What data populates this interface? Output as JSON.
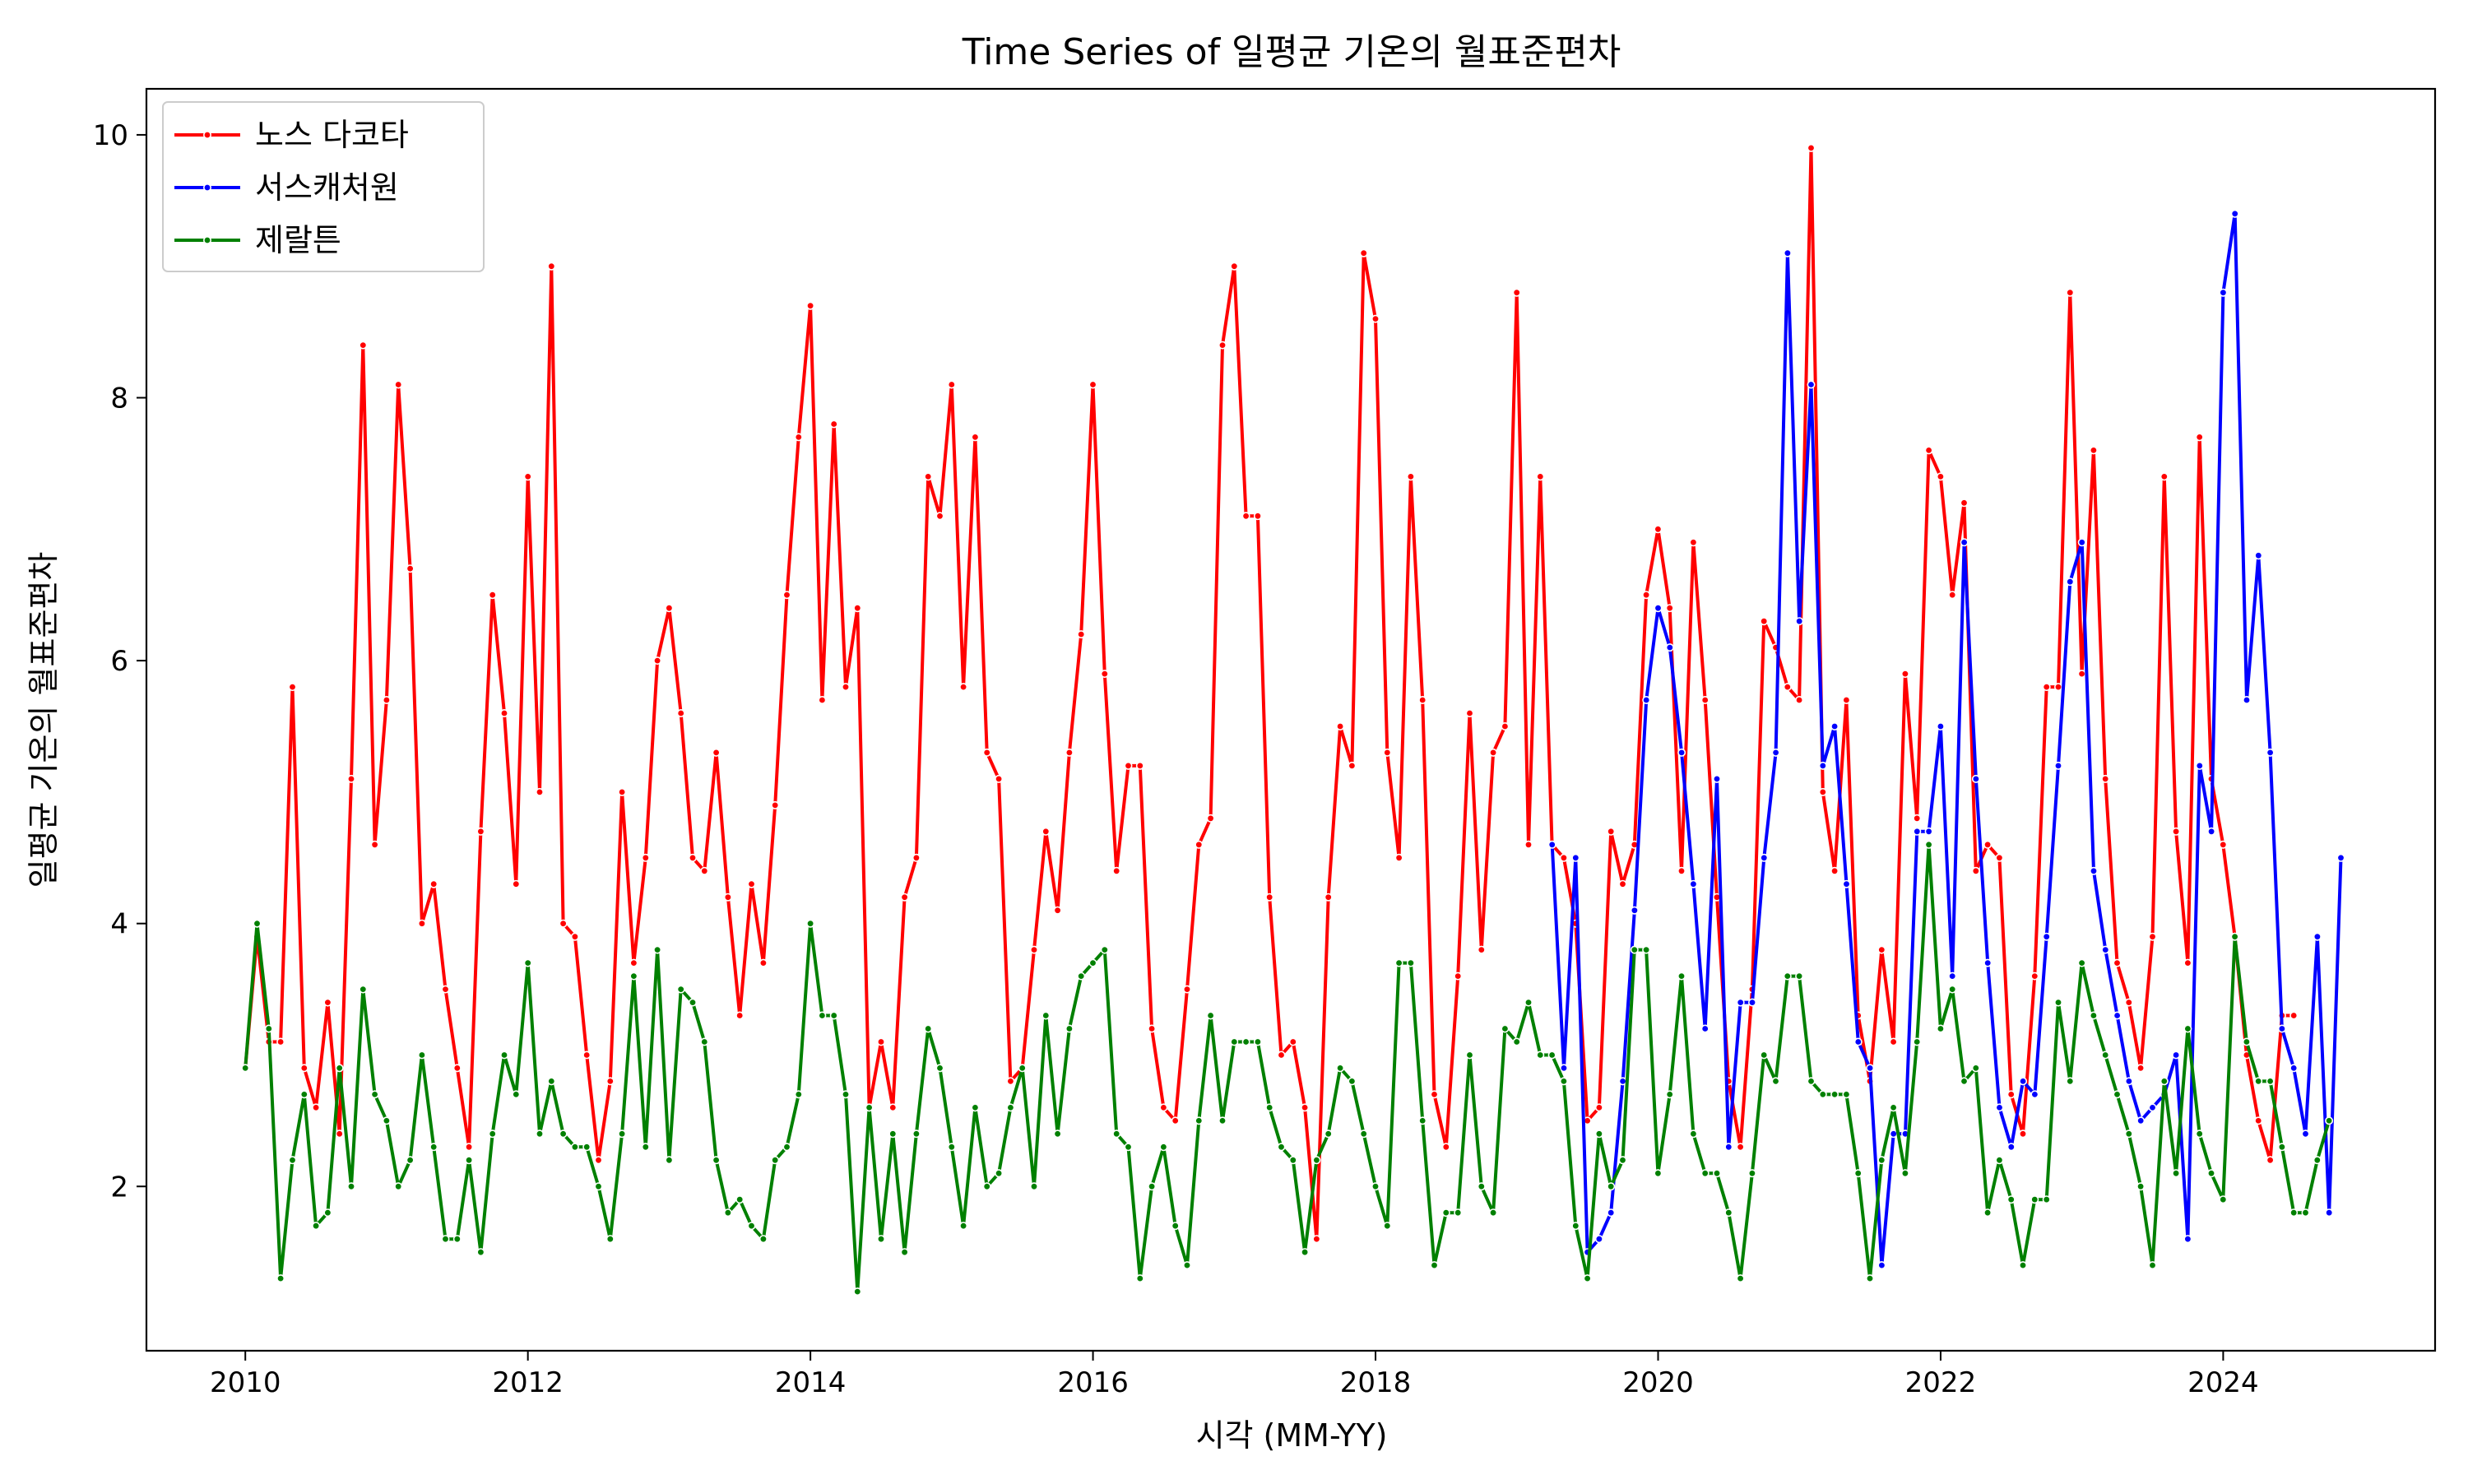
{
  "chart_data": {
    "type": "line",
    "title": "Time Series of 일평균 기온의 월표준편차",
    "xlabel": "시각 (MM-YY)",
    "ylabel": "일평균 기온의 월표준편차",
    "xlim": [
      2009.3,
      2025.5
    ],
    "ylim": [
      0.75,
      10.35
    ],
    "x_ticks": [
      2010,
      2012,
      2014,
      2016,
      2018,
      2020,
      2022,
      2024
    ],
    "y_ticks": [
      2,
      4,
      6,
      8,
      10
    ],
    "grid": false,
    "legend_position": "top-left",
    "series": [
      {
        "name": "노스 다코타",
        "color": "#ff0000",
        "x_start": 2010.0,
        "x_step": 0.08333,
        "values": [
          2.9,
          3.9,
          3.1,
          3.1,
          5.8,
          2.9,
          2.6,
          3.4,
          2.4,
          5.1,
          8.4,
          4.6,
          5.7,
          8.1,
          6.7,
          4.0,
          4.3,
          3.5,
          2.9,
          2.3,
          4.7,
          6.5,
          5.6,
          4.3,
          7.4,
          5.0,
          9.0,
          4.0,
          3.9,
          3.0,
          2.2,
          2.8,
          5.0,
          3.7,
          4.5,
          6.0,
          6.4,
          5.6,
          4.5,
          4.4,
          5.3,
          4.2,
          3.3,
          4.3,
          3.7,
          4.9,
          6.5,
          7.7,
          8.7,
          5.7,
          7.8,
          5.8,
          6.4,
          2.6,
          3.1,
          2.6,
          4.2,
          4.5,
          7.4,
          7.1,
          8.1,
          5.8,
          7.7,
          5.3,
          5.1,
          2.8,
          2.9,
          3.8,
          4.7,
          4.1,
          5.3,
          6.2,
          8.1,
          5.9,
          4.4,
          5.2,
          5.2,
          3.2,
          2.6,
          2.5,
          3.5,
          4.6,
          4.8,
          8.4,
          9.0,
          7.1,
          7.1,
          4.2,
          3.0,
          3.1,
          2.6,
          1.6,
          4.2,
          5.5,
          5.2,
          9.1,
          8.6,
          5.3,
          4.5,
          7.4,
          5.7,
          2.7,
          2.3,
          3.6,
          5.6,
          3.8,
          5.3,
          5.5,
          8.8,
          4.6,
          7.4,
          4.6,
          4.5,
          4.0,
          2.5,
          2.6,
          4.7,
          4.3,
          4.6,
          6.5,
          7.0,
          6.4,
          4.4,
          6.9,
          5.7,
          4.2,
          2.8,
          2.3,
          3.5,
          6.3,
          6.1,
          5.8,
          5.7,
          9.9,
          5.0,
          4.4,
          5.7,
          3.3,
          2.8,
          3.8,
          3.1,
          5.9,
          4.8,
          7.6,
          7.4,
          6.5,
          7.2,
          4.4,
          4.6,
          4.5,
          2.7,
          2.4,
          3.6,
          5.8,
          5.8,
          8.8,
          5.9,
          7.6,
          5.1,
          3.7,
          3.4,
          2.9,
          3.9,
          7.4,
          4.7,
          3.7,
          7.7,
          5.1,
          4.6,
          3.9,
          3.0,
          2.5,
          2.2,
          3.3,
          3.3
        ]
      },
      {
        "name": "서스캐처원",
        "color": "#0000ff",
        "x_start": 2019.25,
        "x_step": 0.08333,
        "values": [
          4.6,
          2.9,
          4.5,
          1.5,
          1.6,
          1.8,
          2.8,
          4.1,
          5.7,
          6.4,
          6.1,
          5.3,
          4.3,
          3.2,
          5.1,
          2.3,
          3.4,
          3.4,
          4.5,
          5.3,
          9.1,
          6.3,
          8.1,
          5.2,
          5.5,
          4.3,
          3.1,
          2.9,
          1.4,
          2.4,
          2.4,
          4.7,
          4.7,
          5.5,
          3.6,
          6.9,
          5.1,
          3.7,
          2.6,
          2.3,
          2.8,
          2.7,
          3.9,
          5.2,
          6.6,
          6.9,
          4.4,
          3.8,
          3.3,
          2.8,
          2.5,
          2.6,
          2.7,
          3.0,
          1.6,
          5.2,
          4.7,
          8.8,
          9.4,
          5.7,
          6.8,
          5.3,
          3.2,
          2.9,
          2.4,
          3.9,
          1.8,
          4.5
        ]
      },
      {
        "name": "제랄튼",
        "color": "#008000",
        "x_start": 2010.0,
        "x_step": 0.08333,
        "values": [
          2.9,
          4.0,
          3.2,
          1.3,
          2.2,
          2.7,
          1.7,
          1.8,
          2.9,
          2.0,
          3.5,
          2.7,
          2.5,
          2.0,
          2.2,
          3.0,
          2.3,
          1.6,
          1.6,
          2.2,
          1.5,
          2.4,
          3.0,
          2.7,
          3.7,
          2.4,
          2.8,
          2.4,
          2.3,
          2.3,
          2.0,
          1.6,
          2.4,
          3.6,
          2.3,
          3.8,
          2.2,
          3.5,
          3.4,
          3.1,
          2.2,
          1.8,
          1.9,
          1.7,
          1.6,
          2.2,
          2.3,
          2.7,
          4.0,
          3.3,
          3.3,
          2.7,
          1.2,
          2.6,
          1.6,
          2.4,
          1.5,
          2.4,
          3.2,
          2.9,
          2.3,
          1.7,
          2.6,
          2.0,
          2.1,
          2.6,
          2.9,
          2.0,
          3.3,
          2.4,
          3.2,
          3.6,
          3.7,
          3.8,
          2.4,
          2.3,
          1.3,
          2.0,
          2.3,
          1.7,
          1.4,
          2.5,
          3.3,
          2.5,
          3.1,
          3.1,
          3.1,
          2.6,
          2.3,
          2.2,
          1.5,
          2.2,
          2.4,
          2.9,
          2.8,
          2.4,
          2.0,
          1.7,
          3.7,
          3.7,
          2.5,
          1.4,
          1.8,
          1.8,
          3.0,
          2.0,
          1.8,
          3.2,
          3.1,
          3.4,
          3.0,
          3.0,
          2.8,
          1.7,
          1.3,
          2.4,
          2.0,
          2.2,
          3.8,
          3.8,
          2.1,
          2.7,
          3.6,
          2.4,
          2.1,
          2.1,
          1.8,
          1.3,
          2.1,
          3.0,
          2.8,
          3.6,
          3.6,
          2.8,
          2.7,
          2.7,
          2.7,
          2.1,
          1.3,
          2.2,
          2.6,
          2.1,
          3.1,
          4.6,
          3.2,
          3.5,
          2.8,
          2.9,
          1.8,
          2.2,
          1.9,
          1.4,
          1.9,
          1.9,
          3.4,
          2.8,
          3.7,
          3.3,
          3.0,
          2.7,
          2.4,
          2.0,
          1.4,
          2.8,
          2.1,
          3.2,
          2.4,
          2.1,
          1.9,
          3.9,
          3.1,
          2.8,
          2.8,
          2.3,
          1.8,
          1.8,
          2.2,
          2.5
        ]
      }
    ]
  }
}
